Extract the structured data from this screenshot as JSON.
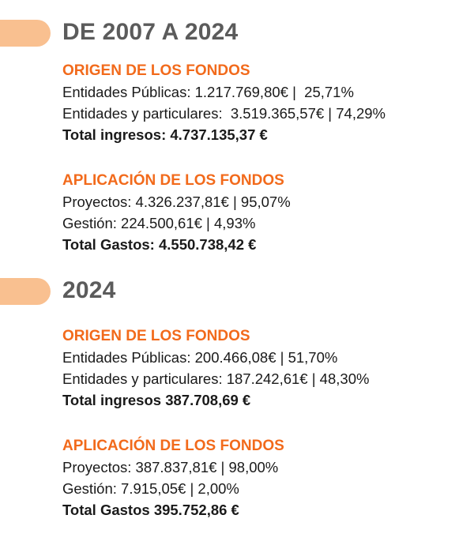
{
  "periods": [
    {
      "heading": "DE 2007 A 2024",
      "origin": {
        "title": "ORIGEN DE LOS FONDOS",
        "lines": [
          "Entidades Públicas: 1.217.769,80€ |  25,71%",
          "Entidades y particulares:  3.519.365,57€ | 74,29%"
        ],
        "total": "Total ingresos: 4.737.135,37 €"
      },
      "application": {
        "title": "APLICACIÓN DE LOS FONDOS",
        "lines": [
          "Proyectos: 4.326.237,81€ | 95,07%",
          "Gestión: 224.500,61€ | 4,93%"
        ],
        "total": "Total Gastos: 4.550.738,42 €"
      }
    },
    {
      "heading": "2024",
      "origin": {
        "title": "ORIGEN DE LOS FONDOS",
        "lines": [
          "Entidades Públicas: 200.466,08€ | 51,70%",
          "Entidades y particulares: 187.242,61€ | 48,30%"
        ],
        "total": "Total ingresos 387.708,69 €"
      },
      "application": {
        "title": "APLICACIÓN DE LOS FONDOS",
        "lines": [
          "Proyectos: 387.837,81€ | 98,00%",
          "Gestión: 7.915,05€ | 2,00%"
        ],
        "total": "Total Gastos 395.752,86 €"
      }
    }
  ],
  "colors": {
    "tab": "#f9c090",
    "heading": "#5b5b5b",
    "subtitle": "#f26a1b",
    "text": "#1a1a1a"
  }
}
